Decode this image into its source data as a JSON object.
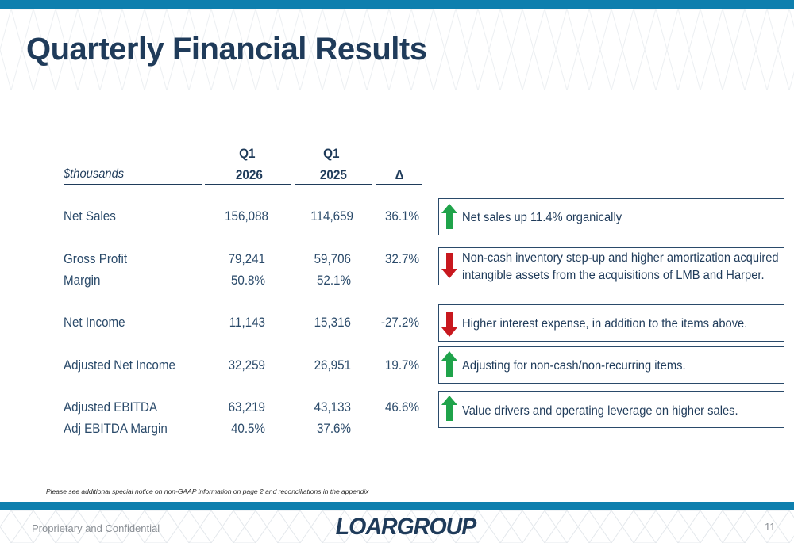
{
  "title": "Quarterly Financial Results",
  "header": {
    "units": "$thousands",
    "col1_line1": "Q1",
    "col1_line2": "2026",
    "col2_line1": "Q1",
    "col2_line2": "2025",
    "col3": "Δ"
  },
  "rows": [
    {
      "label": "Net Sales",
      "q1_2026": "156,088",
      "q1_2025": "114,659",
      "delta": "36.1%"
    },
    {
      "label": "Gross Profit",
      "q1_2026": "79,241",
      "q1_2025": "59,706",
      "delta": "32.7%"
    },
    {
      "label": "Margin",
      "q1_2026": "50.8%",
      "q1_2025": "52.1%",
      "delta": ""
    },
    {
      "label": "Net Income",
      "q1_2026": "11,143",
      "q1_2025": "15,316",
      "delta": "-27.2%"
    },
    {
      "label": "Adjusted Net Income",
      "q1_2026": "32,259",
      "q1_2025": "26,951",
      "delta": "19.7%"
    },
    {
      "label": "Adjusted EBITDA",
      "q1_2026": "63,219",
      "q1_2025": "43,133",
      "delta": "46.6%"
    },
    {
      "label": "Adj EBITDA Margin",
      "q1_2026": "40.5%",
      "q1_2025": "37.6%",
      "delta": ""
    }
  ],
  "notes": [
    {
      "direction": "up",
      "color": "#1fa34a",
      "line1": "Net sales up 11.4% organically",
      "line2": ""
    },
    {
      "direction": "down",
      "color": "#c8181e",
      "line1": "Non-cash inventory step-up and higher amortization acquired",
      "line2": "intangible assets from the acquisitions of LMB and Harper."
    },
    {
      "direction": "down",
      "color": "#c8181e",
      "line1": "Higher interest expense, in addition to the items above.",
      "line2": ""
    },
    {
      "direction": "up",
      "color": "#1fa34a",
      "line1": "Adjusting for non-cash/non-recurring items.",
      "line2": ""
    },
    {
      "direction": "up",
      "color": "#1fa34a",
      "line1": "Value drivers and operating leverage on higher sales.",
      "line2": ""
    }
  ],
  "disclaimer": "Please see additional special notice on non-GAAP information on page 2 and reconciliations in the appendix",
  "footer": {
    "left": "Proprietary and Confidential",
    "logo": "LOARGROUP",
    "page": "11"
  },
  "colors": {
    "accent": "#0e7fae",
    "navy": "#1f3b5a",
    "up": "#1fa34a",
    "down": "#c8181e"
  }
}
